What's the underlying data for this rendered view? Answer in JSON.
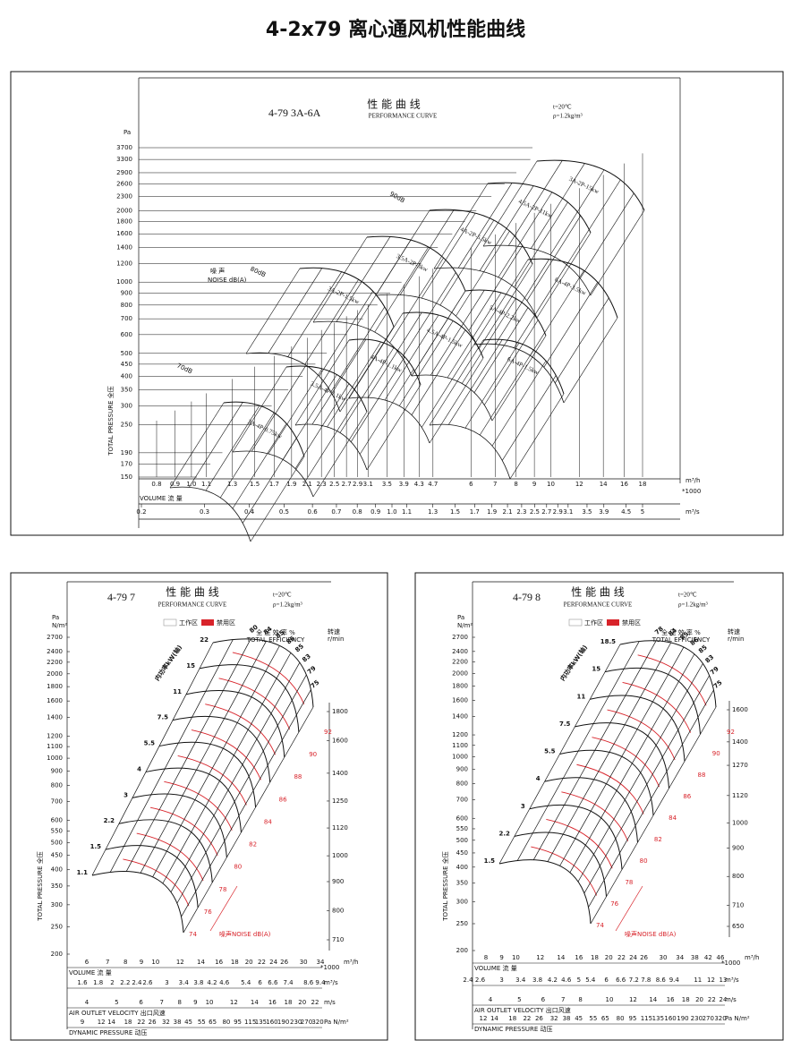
{
  "title": "4-2x79 离心通风机性能曲线",
  "top": {
    "model": "4-79   3A-6A",
    "heading": "性 能 曲 线",
    "heading_en": "PERFORMANCE CURVE",
    "conditions": [
      "t=20℃",
      "ρ=1.2kg/m³"
    ],
    "y_unit": "Pa",
    "y_label": "TOTAL PRESSURE 全压",
    "yticks": [
      "150",
      "170",
      "190",
      "250",
      "300",
      "350",
      "400",
      "450",
      "500",
      "600",
      "700",
      "800",
      "900",
      "1000",
      "1200",
      "1400",
      "1600",
      "1800",
      "2000",
      "2300",
      "2600",
      "2900",
      "3300",
      "3700"
    ],
    "volume_label": "VOLUME  流 量",
    "x_unit": "m³/h",
    "x_multiplier": "*1000",
    "xticks": [
      "0.8",
      "0.9",
      "1.0",
      "1.1",
      "1.3",
      "1.5",
      "1.7",
      "1.9",
      "2.1",
      "2.3",
      "2.5",
      "2.7",
      "2.9",
      "3.1",
      "3.5",
      "3.9",
      "4.3",
      "4.7",
      "6",
      "7",
      "8",
      "9",
      "10",
      "12",
      "14",
      "16",
      "18"
    ],
    "x2_unit": "m³/s",
    "x2ticks": [
      "0.2",
      "0.3",
      "0.4",
      "0.5",
      "0.6",
      "0.7",
      "0.8",
      "0.9",
      "1.0",
      "1.1",
      "1.3",
      "1.5",
      "1.7",
      "1.9",
      "2.1",
      "2.3",
      "2.5",
      "2.7",
      "2.9",
      "3.1",
      "3.5",
      "3.9",
      "4.5",
      "5"
    ],
    "noise": {
      "label_cn": "噪 声",
      "label_en": "NOISE dB(A)",
      "levels": [
        "90dB",
        "80dB",
        "70dB"
      ]
    },
    "fans": [
      "3A-2P-15kw",
      "4.5A-2P-11kw",
      "4A-2P-5.5kw",
      "3.5A-2P-3kw",
      "3A-2P-1.5kw",
      "6A-4P-3.5kw",
      "5A-4P-2.2kw",
      "4.5A-4P-1.5kw",
      "6A-4P-1.5kw",
      "4A-4P-1.1kw",
      "3.5A-4P-1.1kw",
      "3A-4P-0.75kw"
    ]
  },
  "panels": [
    {
      "model": "4-79   7",
      "heading": "性 能 曲 线",
      "heading_en": "PERFORMANCE CURVE",
      "conditions": [
        "t=20℃",
        "ρ=1.2kg/m³"
      ],
      "legend": [
        "工作区",
        "禁用区"
      ],
      "y_unit": [
        "Pa",
        "N/m²"
      ],
      "y_label": "TOTAL PRESSURE 全压",
      "efficiency_header": [
        "全 压 效 率 %",
        "TOTAL EFFICIENCY"
      ],
      "speed_header": [
        "转速",
        "r/min"
      ],
      "power_label": "内功率kW(轴)",
      "noise_label": "噪声NOISE dB(A)",
      "yticks": [
        "200",
        "250",
        "300",
        "350",
        "400",
        "450",
        "500",
        "550",
        "600",
        "700",
        "800",
        "900",
        "1000",
        "1100",
        "1200",
        "1400",
        "1600",
        "1800",
        "2000",
        "2200",
        "2400",
        "2700"
      ],
      "speed_ticks": [
        "710",
        "800",
        "900",
        "1000",
        "1120",
        "1250",
        "1400",
        "1600",
        "1800"
      ],
      "powers": [
        "1.1",
        "1.5",
        "2.2",
        "3",
        "4",
        "5.5",
        "7.5",
        "11",
        "15",
        "22"
      ],
      "efficiencies": [
        "80",
        "84",
        "85",
        "86",
        "85",
        "83",
        "79",
        "75"
      ],
      "noise_levels": [
        "74",
        "76",
        "78",
        "80",
        "82",
        "84",
        "86",
        "88",
        "90",
        "92"
      ],
      "rows": [
        {
          "label": "VOLUME  流 量",
          "multiplier": "*1000",
          "unit": "m³/h",
          "ticks": [
            "6",
            "7",
            "8",
            "9",
            "10",
            "12",
            "14",
            "16",
            "18",
            "20",
            "22",
            "24",
            "26",
            "30",
            "34"
          ]
        },
        {
          "unit": "m³/s",
          "ticks": [
            "1.6",
            "1.8",
            "2",
            "2.2",
            "2.4",
            "2.6",
            "3",
            "3.4",
            "3.8",
            "4.2",
            "4.6",
            "5.4",
            "6",
            "6.6",
            "7.4",
            "8.6",
            "9.4"
          ]
        },
        {
          "label": "AIR OUTLET VELOCITY 出口风速",
          "unit": "m/s",
          "ticks": [
            "4",
            "5",
            "6",
            "7",
            "8",
            "9",
            "10",
            "12",
            "14",
            "16",
            "18",
            "20",
            "22"
          ]
        },
        {
          "label": "DYNAMIC PRESSURE  动压",
          "unit": "Pa N/m²",
          "ticks": [
            "9",
            "12",
            "14",
            "18",
            "22",
            "26",
            "32",
            "38",
            "45",
            "55",
            "65",
            "80",
            "95",
            "115",
            "135",
            "160",
            "190",
            "230",
            "270",
            "320"
          ]
        }
      ]
    },
    {
      "model": "4-79   8",
      "heading": "性 能 曲 线",
      "heading_en": "PERFORMANCE CURVE",
      "conditions": [
        "t=20℃",
        "ρ=1.2kg/m³"
      ],
      "legend": [
        "工作区",
        "禁用区"
      ],
      "y_unit": [
        "Pa",
        "N/m²"
      ],
      "y_label": "TOTAL PRESSURE 全压",
      "efficiency_header": [
        "全 压 效 率 %",
        "TOTAL EFFICIENCY"
      ],
      "speed_header": [
        "转速",
        "r/min"
      ],
      "power_label": "内功率kW(轴)",
      "noise_label": "噪声NOISE dB(A)",
      "yticks": [
        "200",
        "250",
        "300",
        "350",
        "400",
        "450",
        "500",
        "550",
        "600",
        "700",
        "800",
        "900",
        "1000",
        "1100",
        "1200",
        "1400",
        "1600",
        "1800",
        "2000",
        "2200",
        "2400",
        "2700"
      ],
      "speed_ticks": [
        "650",
        "710",
        "800",
        "900",
        "1000",
        "1120",
        "1270",
        "1400",
        "1600"
      ],
      "powers": [
        "1.5",
        "2.2",
        "3",
        "4",
        "5.5",
        "7.5",
        "11",
        "15",
        "18.5"
      ],
      "efficiencies": [
        "78",
        "84",
        "85",
        "86",
        "85",
        "83",
        "79",
        "75"
      ],
      "noise_levels": [
        "74",
        "76",
        "78",
        "80",
        "82",
        "84",
        "86",
        "88",
        "90",
        "92"
      ],
      "rows": [
        {
          "label": "VOLUME  流 量",
          "multiplier": "*1000",
          "unit": "m³/h",
          "ticks": [
            "8",
            "9",
            "10",
            "12",
            "14",
            "16",
            "18",
            "20",
            "22",
            "24",
            "26",
            "30",
            "34",
            "38",
            "42",
            "46"
          ]
        },
        {
          "unit": "m³/s",
          "ticks": [
            "2.4",
            "2.6",
            "3",
            "3.4",
            "3.8",
            "4.2",
            "4.6",
            "5",
            "5.4",
            "6",
            "6.6",
            "7.2",
            "7.8",
            "8.6",
            "9.4",
            "11",
            "12",
            "13"
          ]
        },
        {
          "label": "AIR OUTLET VELOCITY 出口风速",
          "unit": "m/s",
          "ticks": [
            "4",
            "5",
            "6",
            "7",
            "8",
            "10",
            "12",
            "14",
            "16",
            "18",
            "20",
            "22",
            "24"
          ]
        },
        {
          "label": "DYNAMIC PRESSURE  动压",
          "unit": "Pa N/m²",
          "ticks": [
            "12",
            "14",
            "18",
            "22",
            "26",
            "32",
            "38",
            "45",
            "55",
            "65",
            "80",
            "95",
            "115",
            "135",
            "160",
            "190",
            "230",
            "270",
            "320"
          ]
        }
      ]
    }
  ]
}
